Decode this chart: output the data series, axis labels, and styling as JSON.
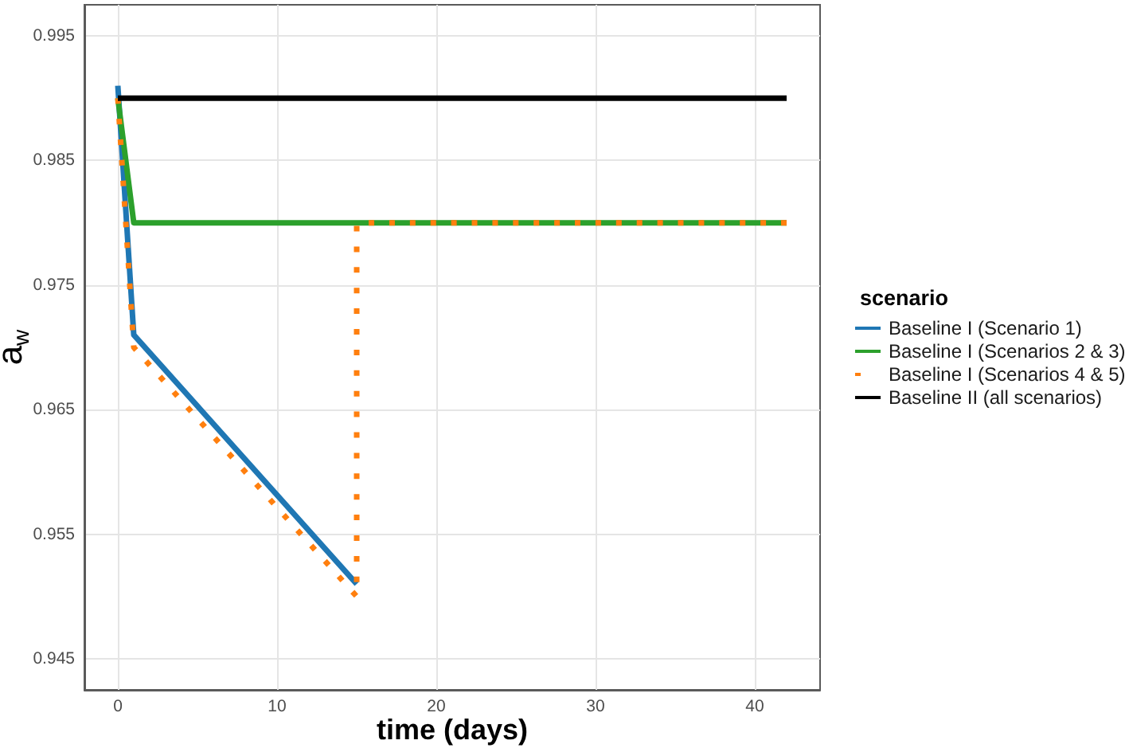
{
  "chart_data": {
    "type": "line",
    "xlabel": "time (days)",
    "ylabel": "a$_{w}$",
    "legend_title": "scenario",
    "xlim": [
      -2.1,
      44.1
    ],
    "xticks": [
      0,
      10,
      20,
      30,
      40
    ],
    "ylim": [
      0.9425,
      0.9975
    ],
    "yticks": [
      0.945,
      0.955,
      0.965,
      0.975,
      0.985,
      0.995
    ],
    "grid": true,
    "legend": "right",
    "marker": "none",
    "line_style": "solid",
    "series": [
      {
        "name": "Baseline I (Scenario 1)",
        "color": "#1f77b4",
        "x": [
          0,
          1,
          15
        ],
        "values": [
          0.991,
          0.971,
          0.951
        ]
      },
      {
        "name": "Baseline I (Scenarios 2 & 3)",
        "color": "#2ca02c",
        "x": [
          0,
          1,
          42
        ],
        "values": [
          0.99,
          0.98,
          0.98
        ]
      },
      {
        "name": "Baseline I (Scenarios 4 & 5)",
        "color": "#ff7f0e",
        "line_style": "dotted",
        "x": [
          0,
          1,
          15,
          15,
          42
        ],
        "values": [
          0.99,
          0.97,
          0.95,
          0.98,
          0.98
        ]
      },
      {
        "name": "Baseline II (all scenarios)",
        "color": "#000000",
        "x": [
          0,
          42
        ],
        "values": [
          0.99,
          0.99
        ]
      }
    ]
  }
}
